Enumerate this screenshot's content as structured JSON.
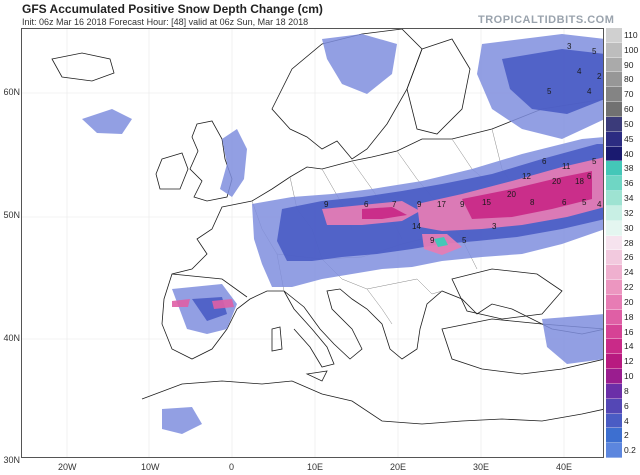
{
  "header": {
    "title": "GFS Accumulated Positive Snow Depth Change (cm)",
    "subtitle": "Init: 06z Mar 16 2018   Forecast Hour: [48]   valid at 06z Sun, Mar 18 2018",
    "brand": "TROPICALTIDBITS.COM"
  },
  "axes": {
    "lat_labels": [
      "60N",
      "50N",
      "40N",
      "30N"
    ],
    "lon_labels": [
      "20W",
      "10W",
      "0",
      "10E",
      "20E",
      "30E",
      "40E"
    ]
  },
  "legend": {
    "labels": [
      "110",
      "100",
      "90",
      "80",
      "70",
      "60",
      "50",
      "45",
      "40",
      "38",
      "36",
      "34",
      "32",
      "30",
      "28",
      "26",
      "24",
      "22",
      "20",
      "18",
      "16",
      "14",
      "12",
      "10",
      "8",
      "6",
      "4",
      "2",
      "0.2"
    ],
    "colors": [
      "#d0d0d0",
      "#bdbdbd",
      "#aaaaaa",
      "#979797",
      "#848484",
      "#717171",
      "#3b3b7a",
      "#2c2c82",
      "#1a1a70",
      "#44c7b8",
      "#6fd6c4",
      "#9ee3d2",
      "#c8efe4",
      "#e4f6f0",
      "#f6e3ee",
      "#f2c9de",
      "#efb0cf",
      "#ec96c0",
      "#e77cb4",
      "#df5fa5",
      "#d64295",
      "#c92a88",
      "#b81a80",
      "#9a1d8f",
      "#6b2fa8",
      "#5447b5",
      "#4a5cc4",
      "#3d6fd0",
      "#5c86de"
    ]
  },
  "map_labels": {
    "snow_values": [
      "3",
      "5",
      "4",
      "2",
      "5",
      "4",
      "5",
      "6",
      "6",
      "11",
      "12",
      "20",
      "18",
      "20",
      "15",
      "8",
      "5",
      "6",
      "4",
      "17",
      "9",
      "7",
      "6",
      "9",
      "9",
      "14",
      "3",
      "9",
      "5"
    ]
  },
  "colors": {
    "background": "#ffffff",
    "land_border": "#1e1e1e",
    "water": "#ffffff",
    "snow_light": "#7f8ede",
    "snow_medium": "#4a5cc4",
    "snow_heavy": "#c92a88",
    "snow_core": "#e77cb4"
  }
}
